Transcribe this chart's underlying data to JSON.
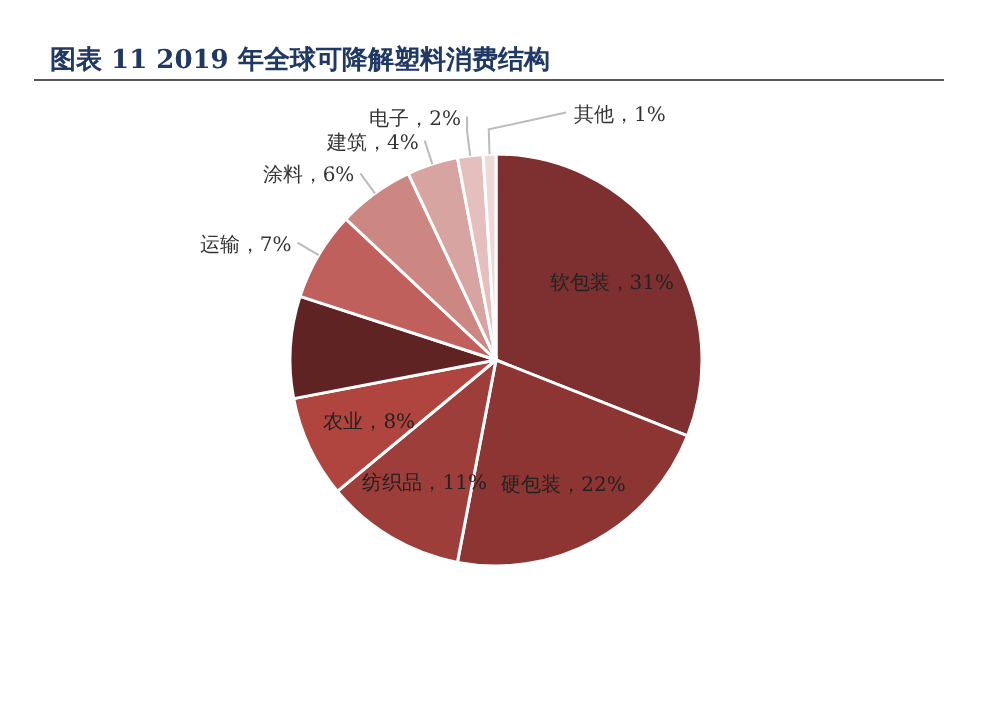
{
  "chart_data": {
    "type": "pie",
    "title": "图表 11 2019 年全球可降解塑料消费结构",
    "categories": [
      "软包装",
      "硬包装",
      "纺织品",
      "农业",
      null,
      "运输",
      "涂料",
      "建筑",
      "电子",
      "其他"
    ],
    "values": [
      31,
      22,
      11,
      8,
      8,
      7,
      6,
      4,
      2,
      1
    ],
    "value_labels": [
      "31%",
      "22%",
      "11%",
      "8%",
      null,
      "7%",
      "6%",
      "4%",
      "2%",
      "1%"
    ],
    "colors": [
      "#7e3030",
      "#8c3533",
      "#9e3e3a",
      "#b0443f",
      "#5e2322",
      "#c0605c",
      "#cd8783",
      "#d8a4a2",
      "#e4bfbe",
      "#efd9d8"
    ]
  }
}
